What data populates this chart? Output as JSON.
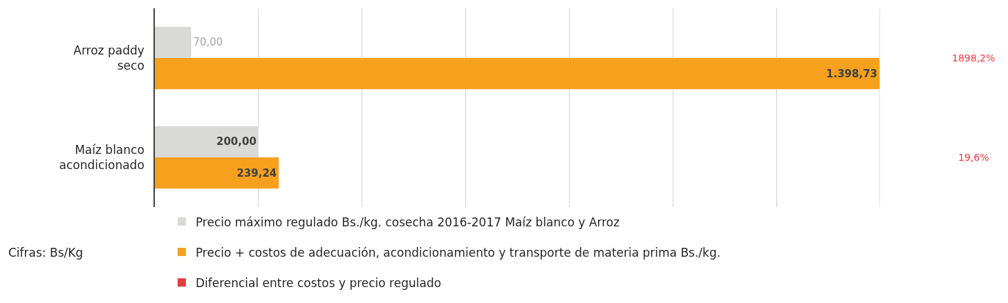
{
  "chart_data": {
    "type": "bar",
    "orientation": "horizontal",
    "categories": [
      "Arroz paddy seco",
      "Maíz blanco acondicionado"
    ],
    "series": [
      {
        "name": "Precio máximo regulado Bs./kg. cosecha 2016-2017 Maíz blanco y Arroz",
        "color": "#d9dad8",
        "values": [
          70,
          200
        ],
        "value_labels": [
          "70,00",
          "200,00"
        ]
      },
      {
        "name": "Precio + costos de adecuación, acondicionamiento y transporte de materia prima Bs./kg.",
        "color": "#f7a01e",
        "values": [
          1398.73,
          239.24
        ],
        "value_labels": [
          "1.398,73",
          "239,24"
        ]
      },
      {
        "name": "Diferencial entre costos y precio regulado",
        "color": "#e8393f",
        "values": [
          null,
          null
        ]
      }
    ],
    "xlim": [
      0,
      1400
    ],
    "xticks": [
      {
        "value": 0,
        "label": null
      },
      {
        "value": 200,
        "label": null
      },
      {
        "value": 400,
        "label": null
      },
      {
        "value": 600,
        "label": null
      },
      {
        "value": 800,
        "label": null
      },
      {
        "value": 1000,
        "label": null
      },
      {
        "value": 1200,
        "label": null
      }
    ],
    "grid": "x",
    "legend": "bottom",
    "tick_labels": "y",
    "annotations": [
      "Cifras: Bs/Kg",
      "1898,2%",
      "19,6%"
    ]
  }
}
